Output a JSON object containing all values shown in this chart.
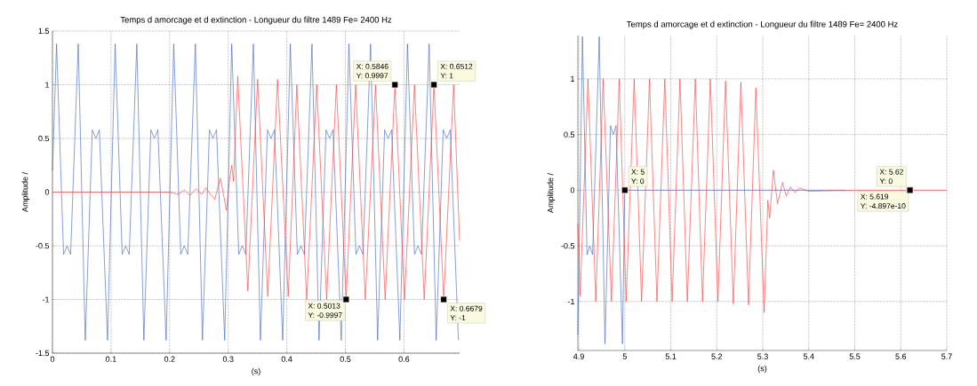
{
  "chart_data": [
    {
      "type": "line",
      "title": "Temps d amorcage et d extinction - Longueur du filtre 1489 Fe= 2400 Hz",
      "xlabel": "(s)",
      "ylabel": "Amplitude /",
      "xlim": [
        0,
        0.695
      ],
      "ylim": [
        -1.5,
        1.5
      ],
      "xticks": [
        0,
        0.1,
        0.2,
        0.3,
        0.4,
        0.5,
        0.6
      ],
      "yticks": [
        -1.5,
        -1,
        -0.5,
        0,
        0.5,
        1,
        1.5
      ],
      "grid": true,
      "series": [
        {
          "color": "#3560b8",
          "x": [
            0,
            0.007,
            0.019,
            0.025,
            0.031,
            0.044,
            0.056,
            0.068,
            0.074,
            0.08,
            0.094,
            0.107,
            0.119,
            0.125,
            0.131,
            0.144,
            0.156,
            0.168,
            0.174,
            0.18,
            0.194,
            0.207,
            0.219,
            0.225,
            0.231,
            0.244,
            0.256,
            0.268,
            0.274,
            0.28,
            0.294,
            0.306,
            0.318,
            0.324,
            0.33,
            0.343,
            0.355,
            0.367,
            0.373,
            0.379,
            0.393,
            0.406,
            0.418,
            0.424,
            0.43,
            0.443,
            0.455,
            0.467,
            0.473,
            0.479,
            0.493,
            0.506,
            0.518,
            0.524,
            0.53,
            0.543,
            0.555,
            0.567,
            0.573,
            0.579,
            0.593,
            0.606,
            0.618,
            0.624,
            0.63,
            0.643,
            0.655,
            0.667,
            0.673,
            0.679,
            0.693
          ],
          "values": [
            0.2,
            1.38,
            -0.58,
            -0.5,
            -0.58,
            1.38,
            -1.38,
            0.58,
            0.5,
            0.58,
            -1.38,
            1.38,
            -0.58,
            -0.5,
            -0.58,
            1.38,
            -1.38,
            0.58,
            0.5,
            0.58,
            -1.38,
            1.38,
            -0.58,
            -0.5,
            -0.58,
            1.38,
            -1.38,
            0.58,
            0.5,
            0.58,
            -1.38,
            1.38,
            -0.58,
            -0.5,
            -0.58,
            1.38,
            -1.38,
            0.58,
            0.5,
            0.58,
            -1.38,
            1.38,
            -0.58,
            -0.5,
            -0.58,
            1.38,
            -1.38,
            0.58,
            0.5,
            0.58,
            -1.38,
            1.38,
            -0.58,
            -0.5,
            -0.58,
            1.38,
            -1.38,
            0.58,
            0.5,
            0.58,
            -1.38,
            1.38,
            -0.58,
            -0.5,
            -0.58,
            1.38,
            -1.38,
            0.58,
            0.5,
            0.58,
            -1.38
          ]
        },
        {
          "color": "#ff3333",
          "x": [
            0,
            0.1,
            0.15,
            0.2,
            0.215,
            0.225,
            0.235,
            0.245,
            0.255,
            0.262,
            0.27,
            0.277,
            0.2865,
            0.297,
            0.302,
            0.306,
            0.309,
            0.3163,
            0.3335,
            0.3502,
            0.3675,
            0.3842,
            0.4025,
            0.4171,
            0.434,
            0.4511,
            0.468,
            0.4846,
            0.5013,
            0.5175,
            0.534,
            0.5515,
            0.5679,
            0.5846,
            0.601,
            0.6179,
            0.6346,
            0.6512,
            0.6679,
            0.6848,
            0.695
          ],
          "values": [
            0,
            0,
            0,
            0,
            -0.02,
            0.02,
            -0.03,
            0.03,
            -0.02,
            0.04,
            -0.02,
            -0.07,
            0.13,
            -0.17,
            0.1,
            0.25,
            0.1,
            1.08,
            -0.92,
            1.05,
            -0.97,
            1.05,
            -0.97,
            1.0,
            -1.0,
            1.0,
            -1.0,
            1.0,
            -0.9997,
            1.0,
            -1.0,
            1.0,
            -1.0,
            0.9997,
            -1.0,
            1.0,
            -1.0,
            1.0,
            -1.0,
            1.0,
            -0.45
          ]
        }
      ],
      "annotations": [
        {
          "text": "X: 0.5846",
          "x": 0.5846,
          "y": 0.9997
        },
        {
          "text": "Y: 0.9997",
          "x": 0.5846,
          "y": 0.9997
        },
        {
          "text": "X: 0.6512",
          "x": 0.6512,
          "y": 1
        },
        {
          "text": "Y: 1",
          "x": 0.6512,
          "y": 1
        },
        {
          "text": "X: 0.5013",
          "x": 0.5013,
          "y": -0.9997
        },
        {
          "text": "Y: -0.9997",
          "x": 0.5013,
          "y": -0.9997
        },
        {
          "text": "X: 0.6679",
          "x": 0.6679,
          "y": -1
        },
        {
          "text": "Y: -1",
          "x": 0.6679,
          "y": -1
        }
      ]
    },
    {
      "type": "line",
      "title": "Temps d amorcage et d extinction - Longueur du filtre 1489 Fe= 2400 Hz",
      "xlabel": "(s)",
      "ylabel": "Amplitude /",
      "xlim": [
        4.898,
        5.7
      ],
      "ylim": [
        -1.44,
        1.39
      ],
      "xticks": [
        4.9,
        5,
        5.1,
        5.2,
        5.3,
        5.4,
        5.5,
        5.6,
        5.7
      ],
      "yticks": [
        -1,
        -0.5,
        0,
        0.5,
        1
      ],
      "grid": true,
      "series": [
        {
          "color": "#3560b8",
          "x": [
            4.898,
            4.908,
            4.918,
            4.924,
            4.93,
            4.9445,
            4.957,
            4.969,
            4.975,
            4.981,
            4.995,
            5.0,
            5.48
          ],
          "values": [
            -1.3,
            1.38,
            -0.58,
            -0.5,
            -0.58,
            1.38,
            -1.38,
            0.58,
            0.5,
            0.58,
            -1.38,
            0,
            0
          ]
        },
        {
          "color": "#ff3333",
          "x": [
            4.898,
            4.903,
            4.92,
            4.937,
            4.953,
            4.971,
            4.988,
            5.003,
            5.0205,
            5.0365,
            5.0537,
            5.07,
            5.087,
            5.103,
            5.12,
            5.136,
            5.1534,
            5.169,
            5.186,
            5.2026,
            5.219,
            5.236,
            5.2524,
            5.269,
            5.285,
            5.303,
            5.311,
            5.315,
            5.323,
            5.332,
            5.343,
            5.351,
            5.36,
            5.37,
            5.38,
            5.4,
            5.5,
            5.7
          ],
          "values": [
            -0.3,
            -0.95,
            1.0,
            -1.0,
            1.0,
            -1.0,
            1.0,
            -1.0,
            1.0,
            -1.0,
            1.0,
            -1.0,
            1.0,
            -1.0,
            1.0,
            -1.0,
            1.0,
            -1.0,
            1.0,
            -1.0,
            0.98,
            -1.02,
            0.97,
            -1.03,
            0.92,
            -1.1,
            -0.09,
            -0.25,
            0.18,
            -0.12,
            0.07,
            -0.05,
            0.03,
            -0.02,
            0.02,
            -0.01,
            0,
            0
          ]
        }
      ],
      "annotations": [
        {
          "text": "X: 5",
          "x": 5,
          "y": 0
        },
        {
          "text": "Y: 0",
          "x": 5,
          "y": 0
        },
        {
          "text": "X: 5.619",
          "x": 5.619,
          "y": -4.897e-10
        },
        {
          "text": "Y: -4.897e-10",
          "x": 5.619,
          "y": -4.897e-10
        },
        {
          "text": "X: 5.62",
          "x": 5.62,
          "y": 0
        },
        {
          "text": "Y: 0",
          "x": 5.62,
          "y": 0
        }
      ]
    }
  ]
}
